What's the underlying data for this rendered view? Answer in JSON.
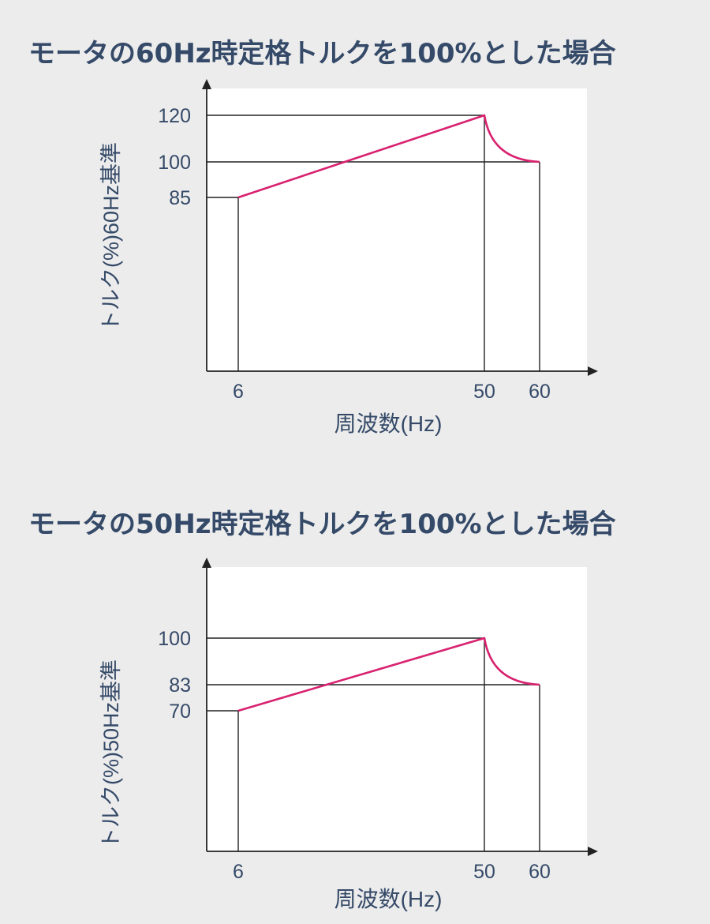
{
  "colors": {
    "background": "#ececec",
    "plot_area": "#ffffff",
    "axis": "#222222",
    "curve": "#d8226f",
    "text": "#354a68"
  },
  "chart_data": [
    {
      "type": "line",
      "title": "モータの60Hz時定格トルクを100%とした場合",
      "xlabel": "周波数(Hz)",
      "ylabel": "トルク(%)60Hz基準",
      "xticks": [
        "6",
        "50",
        "60"
      ],
      "yticks": [
        "120",
        "100",
        "85"
      ],
      "grid": false,
      "series": [
        {
          "points": [
            [
              0,
              85
            ],
            [
              6,
              85
            ],
            [
              50,
              120
            ],
            [
              60,
              100
            ]
          ],
          "segments": [
            {
              "from": [
                0,
                85
              ],
              "to": [
                6,
                85
              ],
              "style": "flat"
            },
            {
              "from": [
                6,
                85
              ],
              "to": [
                50,
                120
              ],
              "style": "linear"
            },
            {
              "from": [
                50,
                120
              ],
              "to": [
                60,
                100
              ],
              "style": "concave-decay"
            }
          ]
        }
      ]
    },
    {
      "type": "line",
      "title": "モータの50Hz時定格トルクを100%とした場合",
      "xlabel": "周波数(Hz)",
      "ylabel": "トルク(%)50Hz基準",
      "xticks": [
        "6",
        "50",
        "60"
      ],
      "yticks": [
        "100",
        "83",
        "70"
      ],
      "grid": false,
      "series": [
        {
          "points": [
            [
              0,
              70
            ],
            [
              6,
              70
            ],
            [
              50,
              100
            ],
            [
              60,
              83
            ]
          ],
          "segments": [
            {
              "from": [
                0,
                70
              ],
              "to": [
                6,
                70
              ],
              "style": "flat"
            },
            {
              "from": [
                6,
                70
              ],
              "to": [
                50,
                100
              ],
              "style": "linear"
            },
            {
              "from": [
                50,
                100
              ],
              "to": [
                60,
                83
              ],
              "style": "concave-decay"
            }
          ]
        }
      ]
    }
  ]
}
